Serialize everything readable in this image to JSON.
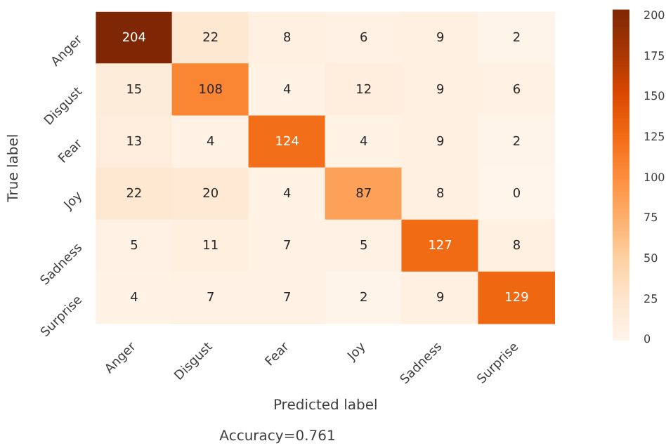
{
  "chart_data": {
    "type": "heatmap",
    "xlabel": "Predicted label",
    "ylabel": "True label",
    "annotations": [
      "Accuracy=0.761"
    ],
    "categories": [
      "Anger",
      "Disgust",
      "Fear",
      "Joy",
      "Sadness",
      "Surprise"
    ],
    "y_categories": [
      "Anger",
      "Disgust",
      "Fear",
      "Joy",
      "Sadness",
      "Surprise"
    ],
    "cells": [
      [
        204,
        22,
        8,
        6,
        9,
        2
      ],
      [
        15,
        108,
        4,
        12,
        9,
        6
      ],
      [
        13,
        4,
        124,
        4,
        9,
        2
      ],
      [
        22,
        20,
        4,
        87,
        8,
        0
      ],
      [
        5,
        11,
        7,
        5,
        127,
        8
      ],
      [
        4,
        7,
        7,
        2,
        9,
        129
      ]
    ],
    "clim": [
      0,
      204
    ],
    "cticks": [
      0,
      25,
      50,
      75,
      100,
      125,
      150,
      175,
      200
    ],
    "data_labels": true
  }
}
